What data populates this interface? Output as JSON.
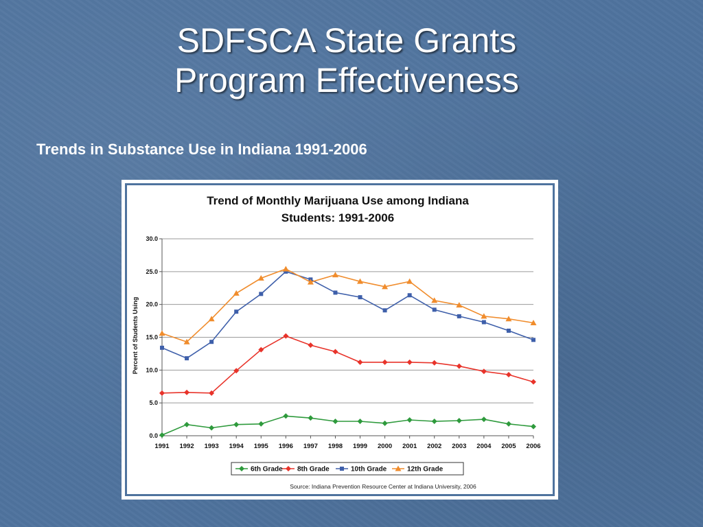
{
  "slide": {
    "title_line1": "SDFSCA State Grants",
    "title_line2": "Program Effectiveness",
    "subtitle": "Trends in Substance Use in Indiana 1991-2006"
  },
  "chart_data": {
    "type": "line",
    "title_line1": "Trend of Monthly Marijuana Use among Indiana",
    "title_line2": "Students: 1991-2006",
    "ylabel": "Percent of Students Using",
    "xlabel": "",
    "x": [
      "1991",
      "1992",
      "1993",
      "1994",
      "1995",
      "1996",
      "1997",
      "1998",
      "1999",
      "2000",
      "2001",
      "2002",
      "2003",
      "2004",
      "2005",
      "2006"
    ],
    "ylim": [
      0,
      30
    ],
    "yticks": [
      "0.0",
      "5.0",
      "10.0",
      "15.0",
      "20.0",
      "25.0",
      "30.0"
    ],
    "grid": true,
    "legend_position": "bottom",
    "source": "Source: Indiana Prevention Resource Center at Indiana University, 2006",
    "series": [
      {
        "name": "6th Grade",
        "color": "#2e9a3c",
        "marker": "diamond",
        "values": [
          0.1,
          1.7,
          1.2,
          1.7,
          1.8,
          3.0,
          2.7,
          2.2,
          2.2,
          1.9,
          2.4,
          2.2,
          2.3,
          2.5,
          1.8,
          1.4
        ]
      },
      {
        "name": "8th Grade",
        "color": "#e8332a",
        "marker": "diamond",
        "values": [
          6.5,
          6.6,
          6.5,
          9.9,
          13.1,
          15.2,
          13.8,
          12.8,
          11.2,
          11.2,
          11.2,
          11.1,
          10.6,
          9.8,
          9.3,
          8.2
        ]
      },
      {
        "name": "10th Grade",
        "color": "#3e5faa",
        "marker": "square",
        "values": [
          13.4,
          11.8,
          14.3,
          18.9,
          21.6,
          25.0,
          23.8,
          21.8,
          21.1,
          19.1,
          21.4,
          19.2,
          18.2,
          17.3,
          16.0,
          14.6
        ]
      },
      {
        "name": "12th Grade",
        "color": "#f08c2c",
        "marker": "triangle",
        "values": [
          15.6,
          14.3,
          17.8,
          21.7,
          24.0,
          25.4,
          23.4,
          24.5,
          23.5,
          22.7,
          23.5,
          20.6,
          19.9,
          18.2,
          17.8,
          17.2
        ]
      }
    ]
  }
}
